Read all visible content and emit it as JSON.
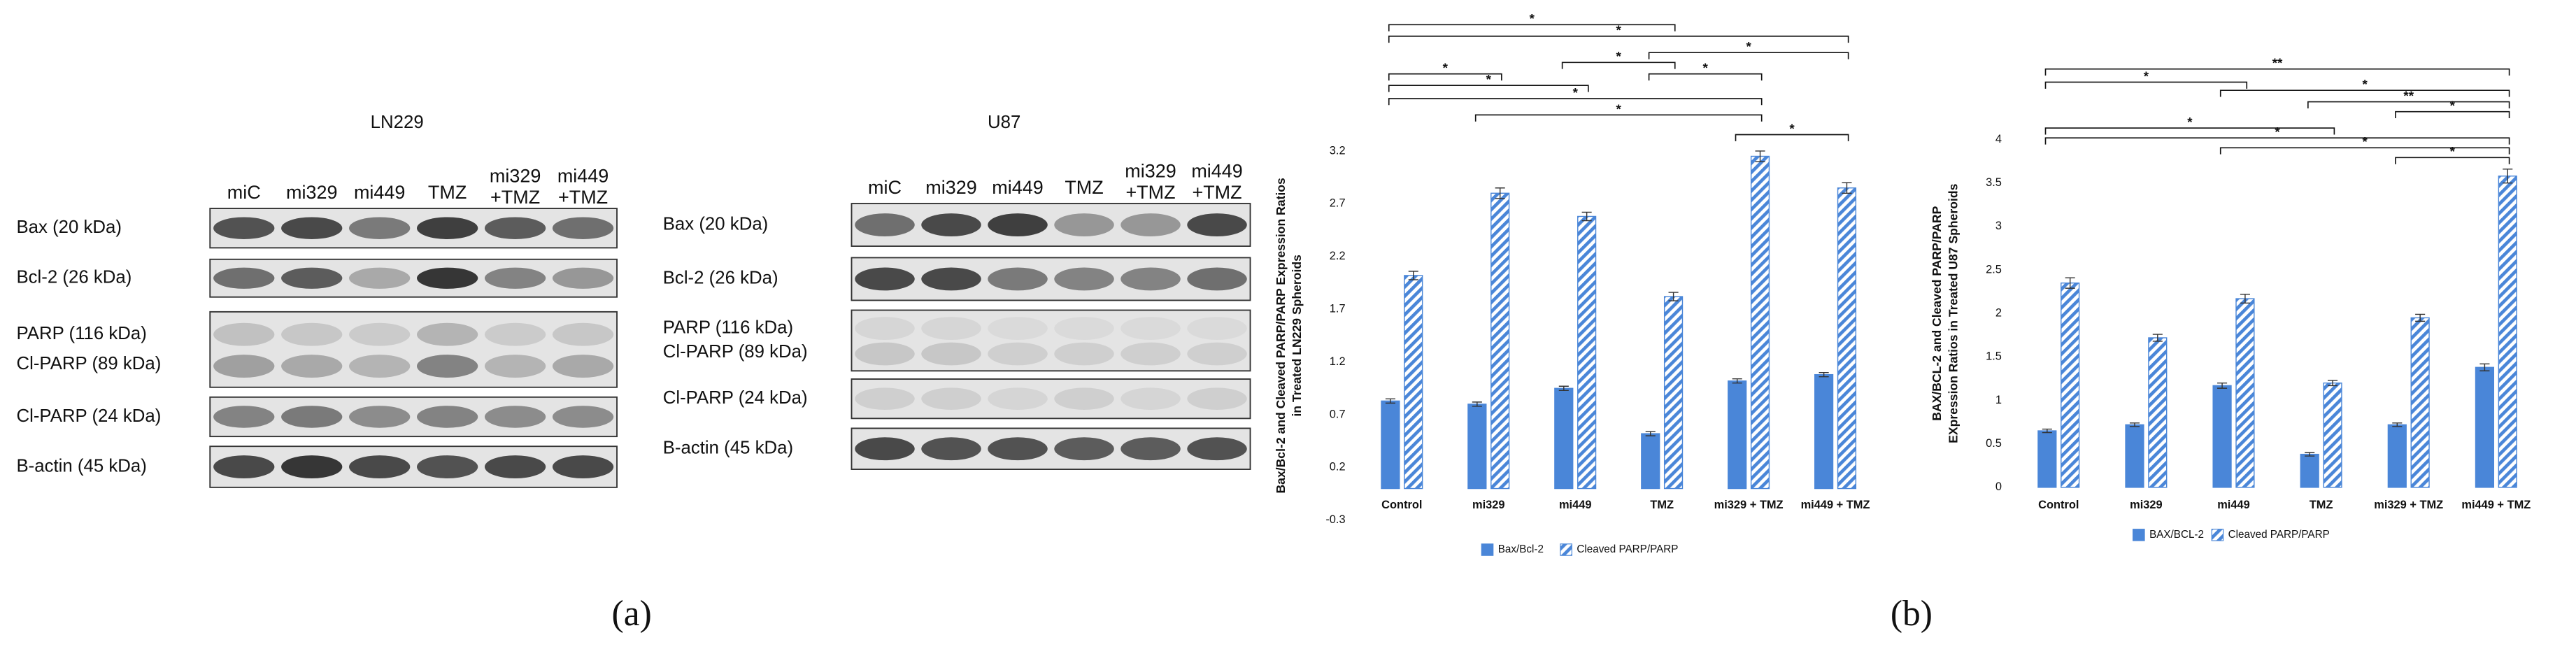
{
  "panel_a": {
    "label": "(a)",
    "blots": [
      {
        "title": "LN229",
        "lanes": [
          "miC",
          "mi329",
          "mi449",
          "TMZ",
          [
            "mi329",
            "+TMZ"
          ],
          [
            "mi449",
            "+TMZ"
          ]
        ],
        "rows": [
          "Bax (20 kDa)",
          "Bcl-2 (26 kDa)",
          [
            "PARP (116 kDa)",
            "Cl-PARP (89 kDa)"
          ],
          "Cl-PARP (24 kDa)",
          "B-actin (45 kDa)"
        ]
      },
      {
        "title": "U87",
        "lanes": [
          "miC",
          "mi329",
          "mi449",
          "TMZ",
          [
            "mi329",
            "+TMZ"
          ],
          [
            "mi449",
            "+TMZ"
          ]
        ],
        "rows": [
          "Bax (20 kDa)",
          "Bcl-2 (26 kDa)",
          [
            "PARP (116 kDa)",
            "Cl-PARP (89 kDa)"
          ],
          "Cl-PARP (24 kDa)",
          "B-actin (45 kDa)"
        ]
      }
    ]
  },
  "panel_b": {
    "label": "(b)"
  },
  "chart_data": [
    {
      "type": "bar",
      "y_label": [
        "Bax/Bcl-2 and Cleaved PARP/PARP Expression Ratios",
        "in Treated LN229 Spheroids"
      ],
      "categories": [
        "Control",
        "mi329",
        "mi449",
        "TMZ",
        "mi329 + TMZ",
        "mi449 + TMZ"
      ],
      "series": [
        {
          "name": "Bax/Bcl-2",
          "color": "#4a86d8",
          "pattern": "solid",
          "values": [
            0.83,
            0.8,
            0.95,
            0.52,
            1.02,
            1.08
          ],
          "errors": [
            0.02,
            0.02,
            0.02,
            0.02,
            0.02,
            0.02
          ]
        },
        {
          "name": "Cleaved PARP/PARP",
          "color": "#4a86d8",
          "pattern": "hatched",
          "values": [
            2.02,
            2.8,
            2.58,
            1.82,
            3.15,
            2.85
          ],
          "errors": [
            0.04,
            0.05,
            0.04,
            0.04,
            0.05,
            0.05
          ]
        }
      ],
      "ylim": [
        -0.3,
        3.2
      ],
      "yticks": [
        -0.3,
        0.2,
        0.7,
        1.2,
        1.7,
        2.2,
        2.7,
        3.2
      ],
      "significance": [
        {
          "label": "*"
        },
        {
          "label": "*"
        },
        {
          "label": "*"
        },
        {
          "label": "*"
        },
        {
          "label": "*"
        },
        {
          "label": "*"
        },
        {
          "label": "*"
        },
        {
          "label": "*"
        },
        {
          "label": "*"
        },
        {
          "label": "*"
        }
      ]
    },
    {
      "type": "bar",
      "y_label": [
        "BAX/BCL-2 and Cleaved PARP/PARP",
        "EXpression Ratios in Treated U87 Spheroids"
      ],
      "categories": [
        "Control",
        "mi329",
        "mi449",
        "TMZ",
        "mi329 + TMZ",
        "mi449 + TMZ"
      ],
      "series": [
        {
          "name": "BAX/BCL-2",
          "color": "#4a86d8",
          "pattern": "solid",
          "values": [
            0.65,
            0.72,
            1.17,
            0.38,
            0.72,
            1.38
          ],
          "errors": [
            0.02,
            0.02,
            0.03,
            0.02,
            0.02,
            0.04
          ]
        },
        {
          "name": "Cleaved PARP/PARP",
          "color": "#4a86d8",
          "pattern": "hatched",
          "values": [
            2.35,
            1.72,
            2.17,
            1.2,
            1.95,
            3.58
          ],
          "errors": [
            0.06,
            0.04,
            0.05,
            0.03,
            0.04,
            0.08
          ]
        }
      ],
      "ylim": [
        0,
        4
      ],
      "yticks": [
        0,
        0.5,
        1,
        1.5,
        2,
        2.5,
        3,
        3.5,
        4
      ],
      "significance": [
        {
          "label": "**"
        },
        {
          "label": "*"
        },
        {
          "label": "*"
        },
        {
          "label": "**"
        },
        {
          "label": "*"
        },
        {
          "label": "*"
        },
        {
          "label": "*"
        },
        {
          "label": "*"
        },
        {
          "label": "*"
        }
      ]
    }
  ]
}
